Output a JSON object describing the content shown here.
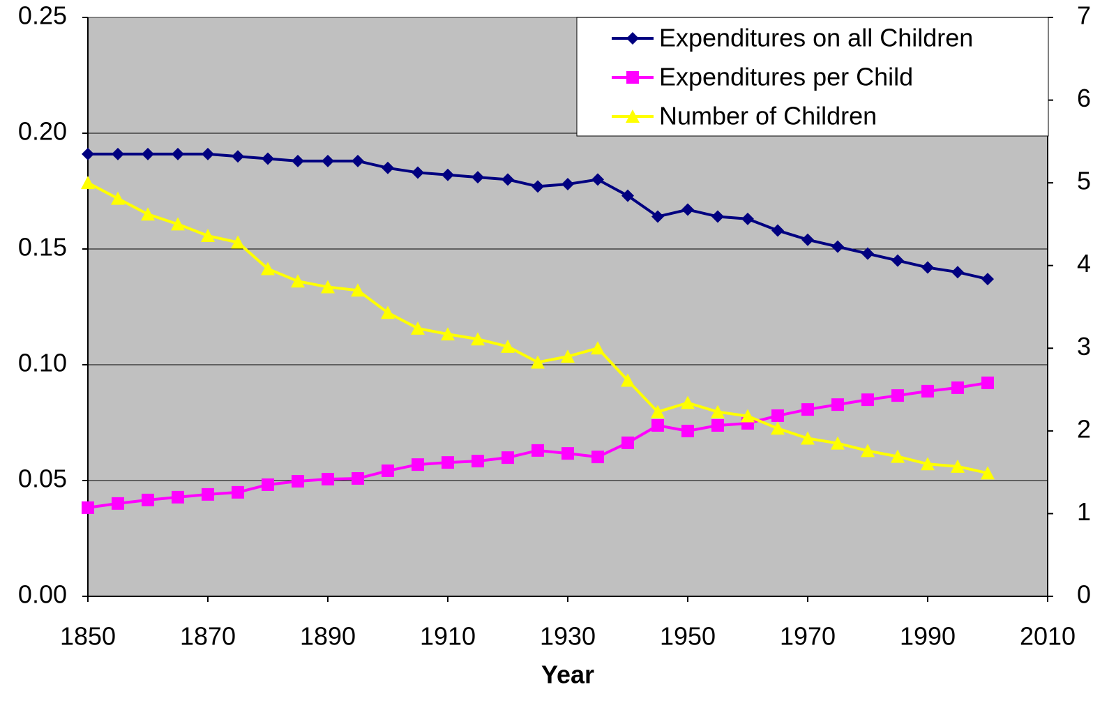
{
  "chart_data": {
    "type": "line",
    "x_label": "Year",
    "x": [
      1850,
      1855,
      1860,
      1865,
      1870,
      1875,
      1880,
      1885,
      1890,
      1895,
      1900,
      1905,
      1910,
      1915,
      1920,
      1925,
      1930,
      1935,
      1940,
      1945,
      1950,
      1955,
      1960,
      1965,
      1970,
      1975,
      1980,
      1985,
      1990,
      1995,
      2000
    ],
    "series": [
      {
        "name": "Expenditures on all Children",
        "color": "#000080",
        "marker": "diamond",
        "values": [
          0.191,
          0.191,
          0.191,
          0.191,
          0.191,
          0.19,
          0.189,
          0.188,
          0.188,
          0.188,
          0.185,
          0.183,
          0.182,
          0.181,
          0.18,
          0.177,
          0.178,
          0.18,
          0.173,
          0.164,
          0.167,
          0.164,
          0.163,
          0.158,
          0.154,
          0.151,
          0.148,
          0.145,
          0.142,
          0.14,
          0.137
        ]
      },
      {
        "name": "Expenditures per Child",
        "color": "#ff00ff",
        "marker": "square",
        "values": [
          0.0383,
          0.0401,
          0.0416,
          0.0428,
          0.044,
          0.0449,
          0.0482,
          0.0497,
          0.0506,
          0.0509,
          0.0542,
          0.0569,
          0.0578,
          0.0584,
          0.0599,
          0.063,
          0.0617,
          0.0602,
          0.0663,
          0.0738,
          0.0714,
          0.0738,
          0.0747,
          0.078,
          0.0807,
          0.0828,
          0.0849,
          0.0867,
          0.0886,
          0.0901,
          0.0922
        ]
      },
      {
        "name": "Number of Children",
        "color": "#ffff00",
        "marker": "triangle",
        "axis": "y2",
        "values": [
          5.0,
          4.81,
          4.62,
          4.5,
          4.36,
          4.28,
          3.96,
          3.81,
          3.74,
          3.7,
          3.43,
          3.24,
          3.17,
          3.11,
          3.02,
          2.83,
          2.9,
          3.0,
          2.61,
          2.23,
          2.34,
          2.23,
          2.18,
          2.03,
          1.91,
          1.85,
          1.76,
          1.69,
          1.6,
          1.57,
          1.49
        ]
      }
    ],
    "xlim": [
      1850,
      2010
    ],
    "xticks": [
      1850,
      1870,
      1890,
      1910,
      1930,
      1950,
      1970,
      1990,
      2010
    ],
    "ylim": [
      0,
      0.25
    ],
    "yticks": [
      {
        "value": 0,
        "label": "0.00"
      },
      0.05,
      {
        "value": 0.1,
        "label": "0.10"
      },
      0.15,
      {
        "value": 0.2,
        "label": "0.20"
      },
      0.25
    ],
    "y2lim": [
      0,
      7
    ],
    "y2ticks": [
      0,
      1,
      2,
      3,
      4,
      5,
      6,
      7
    ],
    "grid": true,
    "legend": "top-right",
    "background": "#c0c0c0"
  }
}
